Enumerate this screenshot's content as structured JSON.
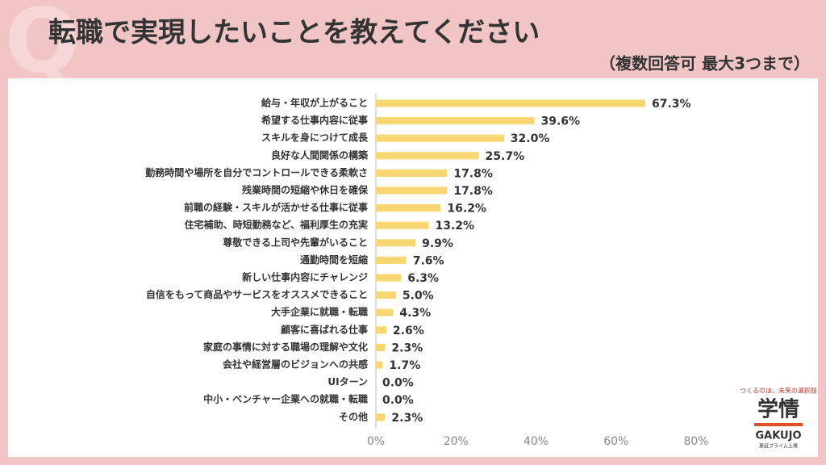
{
  "watermark": "Q",
  "chart_data": {
    "type": "barh",
    "title": "転職で実現したいことを教えてください",
    "subtitle": "（複数回答可 最大3つまで）",
    "categories": [
      "給与・年収が上がること",
      "希望する仕事内容に従事",
      "スキルを身につけて成長",
      "良好な人間関係の構築",
      "勤務時間や場所を自分でコントロールできる柔軟さ",
      "残業時間の短縮や休日を確保",
      "前職の経験・スキルが活かせる仕事に従事",
      "住宅補助、時短勤務など、福利厚生の充実",
      "尊敬できる上司や先輩がいること",
      "通勤時間を短縮",
      "新しい仕事内容にチャレンジ",
      "自信をもって商品やサービスをオススメできること",
      "大手企業に就職・転職",
      "顧客に喜ばれる仕事",
      "家庭の事情に対する職場の理解や文化",
      "会社や経営層のビジョンへの共感",
      "UIターン",
      "中小・ベンチャー企業への就職・転職",
      "その他"
    ],
    "values": [
      67.3,
      39.6,
      32.0,
      25.7,
      17.8,
      17.8,
      16.2,
      13.2,
      9.9,
      7.6,
      6.3,
      5.0,
      4.3,
      2.6,
      2.3,
      1.7,
      0.0,
      0.0,
      2.3
    ],
    "value_labels": [
      "67.3%",
      "39.6%",
      "32.0%",
      "25.7%",
      "17.8%",
      "17.8%",
      "16.2%",
      "13.2%",
      "9.9%",
      "7.6%",
      "6.3%",
      "5.0%",
      "4.3%",
      "2.6%",
      "2.3%",
      "1.7%",
      "0.0%",
      "0.0%",
      "2.3%"
    ],
    "color": "#f8d671",
    "xlim": [
      0,
      80
    ],
    "xticks": [
      {
        "value": 0,
        "label": "0%"
      },
      {
        "value": 20,
        "label": "20%"
      },
      {
        "value": 40,
        "label": "40%"
      },
      {
        "value": 60,
        "label": "60%"
      },
      {
        "value": 80,
        "label": "80%"
      }
    ]
  },
  "logo": {
    "tagline": "つくるのは、未来の選択肢",
    "name": "学情",
    "romaji": "GAKUJO",
    "listing": "東証プライム上場"
  }
}
